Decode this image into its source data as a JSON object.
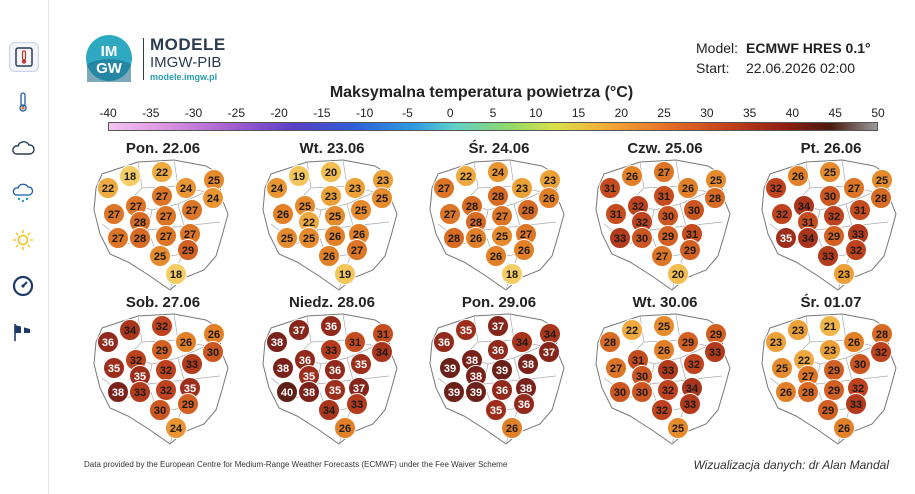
{
  "sidebar": {
    "items": [
      {
        "icon": "thermometer-active-icon",
        "active": true
      },
      {
        "icon": "thermometer-icon"
      },
      {
        "icon": "cloud-icon"
      },
      {
        "icon": "cloud-rain-icon"
      },
      {
        "icon": "sun-icon"
      },
      {
        "icon": "gauge-icon"
      },
      {
        "icon": "windsock-icon"
      }
    ]
  },
  "brand": {
    "logo_top": "IM",
    "logo_bottom": "GW",
    "name": "MODELE",
    "org": "IMGW-PIB",
    "url": "modele.imgw.pl"
  },
  "model": {
    "model_label": "Model:",
    "model_value": "ECMWF HRES 0.1°",
    "start_label": "Start:",
    "start_value": "22.06.2026 02:00"
  },
  "map_title": "Maksymalna temperatura powietrza (°C)",
  "scale_ticks": [
    "-40",
    "-35",
    "-30",
    "-25",
    "-20",
    "-15",
    "-10",
    "-5",
    "0",
    "5",
    "10",
    "15",
    "20",
    "25",
    "30",
    "35",
    "40",
    "45",
    "50"
  ],
  "days": [
    {
      "label": "Pon. 22.06",
      "values": [
        18,
        22,
        24,
        25,
        22,
        27,
        27,
        24,
        27,
        28,
        27,
        27,
        27,
        28,
        27,
        27,
        25,
        29,
        18
      ]
    },
    {
      "label": "Wt. 23.06",
      "values": [
        19,
        20,
        23,
        23,
        24,
        25,
        23,
        25,
        26,
        22,
        25,
        25,
        25,
        25,
        26,
        26,
        26,
        27,
        19
      ]
    },
    {
      "label": "Śr. 24.06",
      "values": [
        22,
        24,
        23,
        23,
        27,
        28,
        28,
        26,
        27,
        28,
        27,
        28,
        28,
        26,
        25,
        27,
        26,
        26,
        18
      ]
    },
    {
      "label": "Czw. 25.06",
      "values": [
        26,
        27,
        26,
        25,
        31,
        32,
        31,
        28,
        31,
        32,
        30,
        30,
        33,
        30,
        29,
        31,
        27,
        29,
        20
      ]
    },
    {
      "label": "Pt. 26.06",
      "values": [
        26,
        25,
        27,
        25,
        32,
        34,
        30,
        28,
        32,
        31,
        32,
        31,
        35,
        34,
        29,
        33,
        33,
        32,
        23
      ]
    },
    {
      "label": "Sob. 27.06",
      "values": [
        34,
        32,
        26,
        26,
        36,
        32,
        29,
        30,
        35,
        35,
        32,
        33,
        38,
        33,
        32,
        35,
        30,
        29,
        24
      ]
    },
    {
      "label": "Niedz. 28.06",
      "values": [
        37,
        36,
        31,
        31,
        38,
        36,
        33,
        34,
        38,
        35,
        36,
        35,
        40,
        38,
        35,
        37,
        34,
        33,
        26
      ]
    },
    {
      "label": "Pon. 29.06",
      "values": [
        35,
        37,
        34,
        34,
        36,
        38,
        36,
        37,
        39,
        38,
        39,
        38,
        39,
        39,
        36,
        38,
        35,
        36,
        26
      ]
    },
    {
      "label": "Wt. 30.06",
      "values": [
        22,
        25,
        29,
        29,
        28,
        31,
        26,
        33,
        27,
        30,
        33,
        32,
        30,
        30,
        32,
        34,
        32,
        33,
        25
      ]
    },
    {
      "label": "Śr. 01.07",
      "values": [
        23,
        21,
        26,
        28,
        23,
        22,
        23,
        32,
        25,
        27,
        29,
        30,
        26,
        28,
        29,
        32,
        29,
        33,
        26
      ]
    }
  ],
  "footer_left": "Data provided by the European Centre for Medium-Range Weather Forecasts (ECMWF) under the Fee Waiver Scheme",
  "footer_right": "Wizualizacja danych: dr Alan Mandal"
}
